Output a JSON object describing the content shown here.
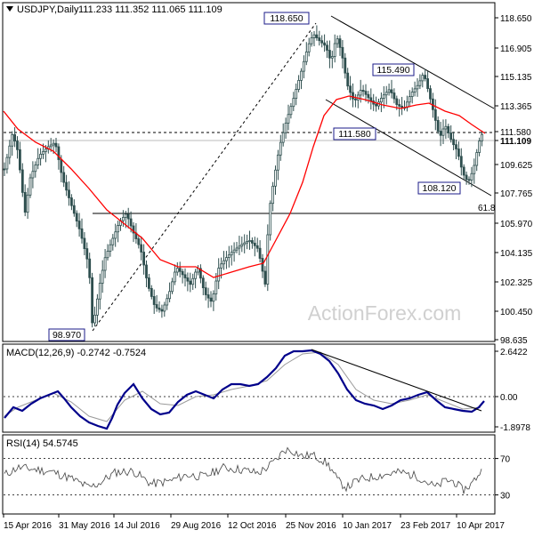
{
  "chart_data": {
    "type": "candlestick",
    "symbol_header": "USDJPY,Daily",
    "ohlc_header": "111.233 111.352 111.065 111.109",
    "watermark": "ActionForex.com",
    "x_tick_labels": [
      "15 Apr 2016",
      "31 May 2016",
      "14 Jul 2016",
      "29 Aug 2016",
      "12 Oct 2016",
      "25 Nov 2016",
      "10 Jan 2017",
      "23 Feb 2017",
      "10 Apr 2017"
    ],
    "price_axis": {
      "ylim": [
        98.0,
        119.8
      ],
      "tick_labels": [
        "118.650",
        "116.905",
        "115.135",
        "113.365",
        "111.580",
        "111.109",
        "109.625",
        "107.765",
        "105.970",
        "104.135",
        "102.325",
        "100.450",
        "98.635"
      ]
    },
    "price_annotations": [
      {
        "label": "118.650",
        "price": 118.65
      },
      {
        "label": "115.490",
        "price": 115.49
      },
      {
        "label": "111.580",
        "price": 111.58
      },
      {
        "label": "108.120",
        "price": 108.12
      },
      {
        "label": "98.970",
        "price": 98.97
      },
      {
        "label": "61.8",
        "price": 106.4
      }
    ],
    "levels": {
      "dashed_resistance": 111.58,
      "current_price": 111.109,
      "fib_61_8": 106.4
    },
    "macd": {
      "header": "MACD(12,26,9) -0.2742 -0.7524",
      "ylim": [
        -2.3,
        3.0
      ],
      "tick_labels": [
        "2.6422",
        "0.00",
        "-1.8978"
      ],
      "zero_label": "0.00"
    },
    "rsi": {
      "header": "RSI(14) 54.5745",
      "ylim": [
        10,
        95
      ],
      "tick_labels": [
        "70",
        "30"
      ],
      "levels": [
        70,
        30
      ]
    },
    "colors": {
      "candle": "#2f4f4f",
      "ma": "#ff0000",
      "macd": "#00008b",
      "signal": "#9a9a9a",
      "trend_line": "#000000",
      "label_box": "#1b1b8a",
      "axis_text": "#000000",
      "rsi_line": "#444444"
    }
  }
}
